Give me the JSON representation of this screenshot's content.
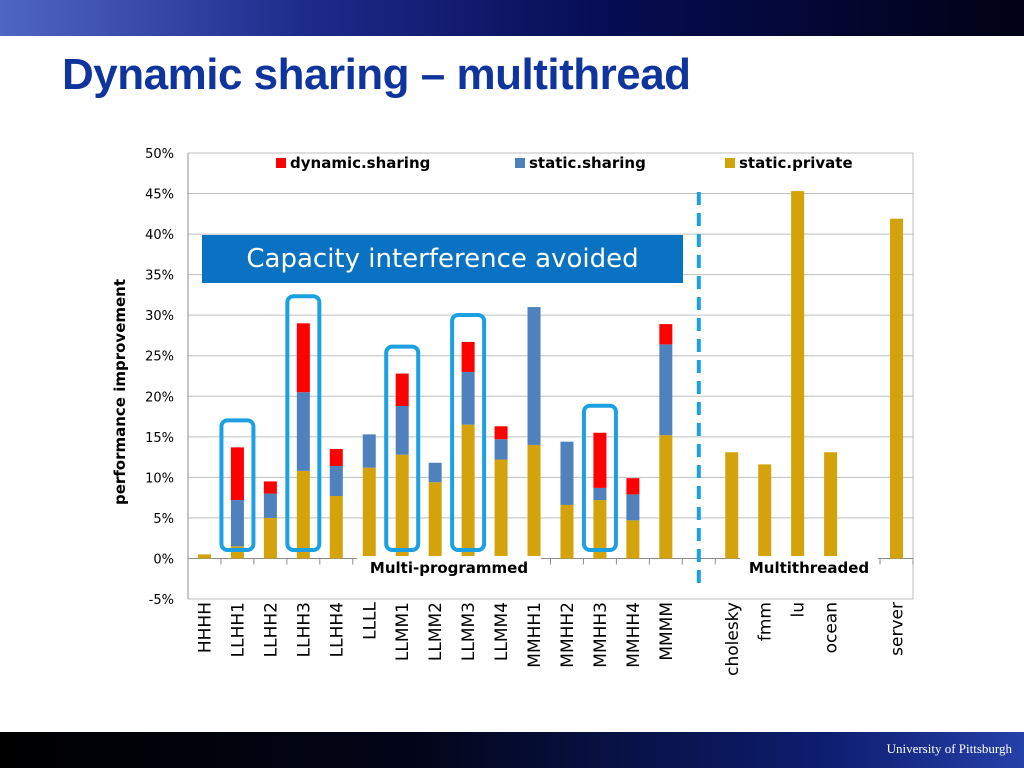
{
  "slide": {
    "title": "Dynamic sharing – multithread",
    "footer": "University of Pittsburgh",
    "callout": "Capacity interference avoided",
    "section_left": "Multi-programmed",
    "section_right": "Multithreaded"
  },
  "colors": {
    "title": "#10349e",
    "dynamic": "#ff0000",
    "static_sharing": "#4f81bd",
    "static_private": "#d4a20a",
    "highlight": "#1ba1e2",
    "callout_bg": "#0a72c2"
  },
  "chart_data": {
    "type": "bar",
    "stacked": true,
    "ylabel": "performance improvement",
    "ylim": [
      -0.05,
      0.5
    ],
    "yticks": [
      "-5%",
      "0%",
      "5%",
      "10%",
      "15%",
      "20%",
      "25%",
      "30%",
      "35%",
      "40%",
      "45%",
      "50%"
    ],
    "grid": true,
    "legend_position": "top",
    "categories": [
      "HHHH",
      "LLHH1",
      "LLHH2",
      "LLHH3",
      "LLHH4",
      "LLLL",
      "LLMM1",
      "LLMM2",
      "LLMM3",
      "LLMM4",
      "MMHH1",
      "MMHH2",
      "MMHH3",
      "MMHH4",
      "MMMM",
      "",
      "cholesky",
      "fmm",
      "lu",
      "ocean",
      "",
      "server"
    ],
    "series": [
      {
        "name": "static.private",
        "values": [
          0.005,
          0.015,
          0.05,
          0.108,
          0.077,
          0.112,
          0.128,
          0.094,
          0.165,
          0.122,
          0.14,
          0.066,
          0.072,
          0.047,
          0.152,
          0,
          0.131,
          0.116,
          0.453,
          0.131,
          0,
          0.419
        ]
      },
      {
        "name": "static.sharing",
        "values": [
          0,
          0.057,
          0.03,
          0.097,
          0.037,
          0.041,
          0.06,
          0.024,
          0.065,
          0.025,
          0.17,
          0.078,
          0.015,
          0.032,
          0.112,
          0,
          0,
          0,
          0,
          0,
          0,
          0
        ]
      },
      {
        "name": "dynamic.sharing",
        "values": [
          0,
          0.065,
          0.015,
          0.085,
          0.021,
          0,
          0.04,
          0,
          0.037,
          0.016,
          0,
          0,
          0.068,
          0.02,
          0.025,
          0,
          0,
          0,
          0,
          0,
          0,
          0
        ]
      }
    ],
    "highlighted": [
      "LLHH1",
      "LLHH3",
      "LLMM1",
      "LLMM3",
      "MMHH3"
    ],
    "divider_after": "MMMM"
  }
}
